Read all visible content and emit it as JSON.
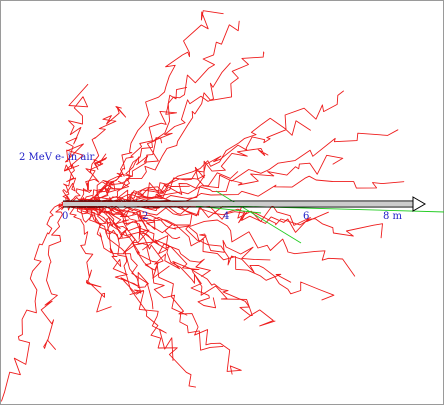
{
  "figure": {
    "label": "2 MeV e- in air",
    "axis_ticks": [
      "0",
      "2",
      "4",
      "6",
      "8 m"
    ],
    "colors": {
      "electron_tracks": "#ee1c1c",
      "photon_tracks": "#22cc22",
      "label_text": "#2020c8",
      "beam_arrow": "#000000",
      "frame": "#9a9a9a",
      "background": "#ffffff"
    }
  }
}
